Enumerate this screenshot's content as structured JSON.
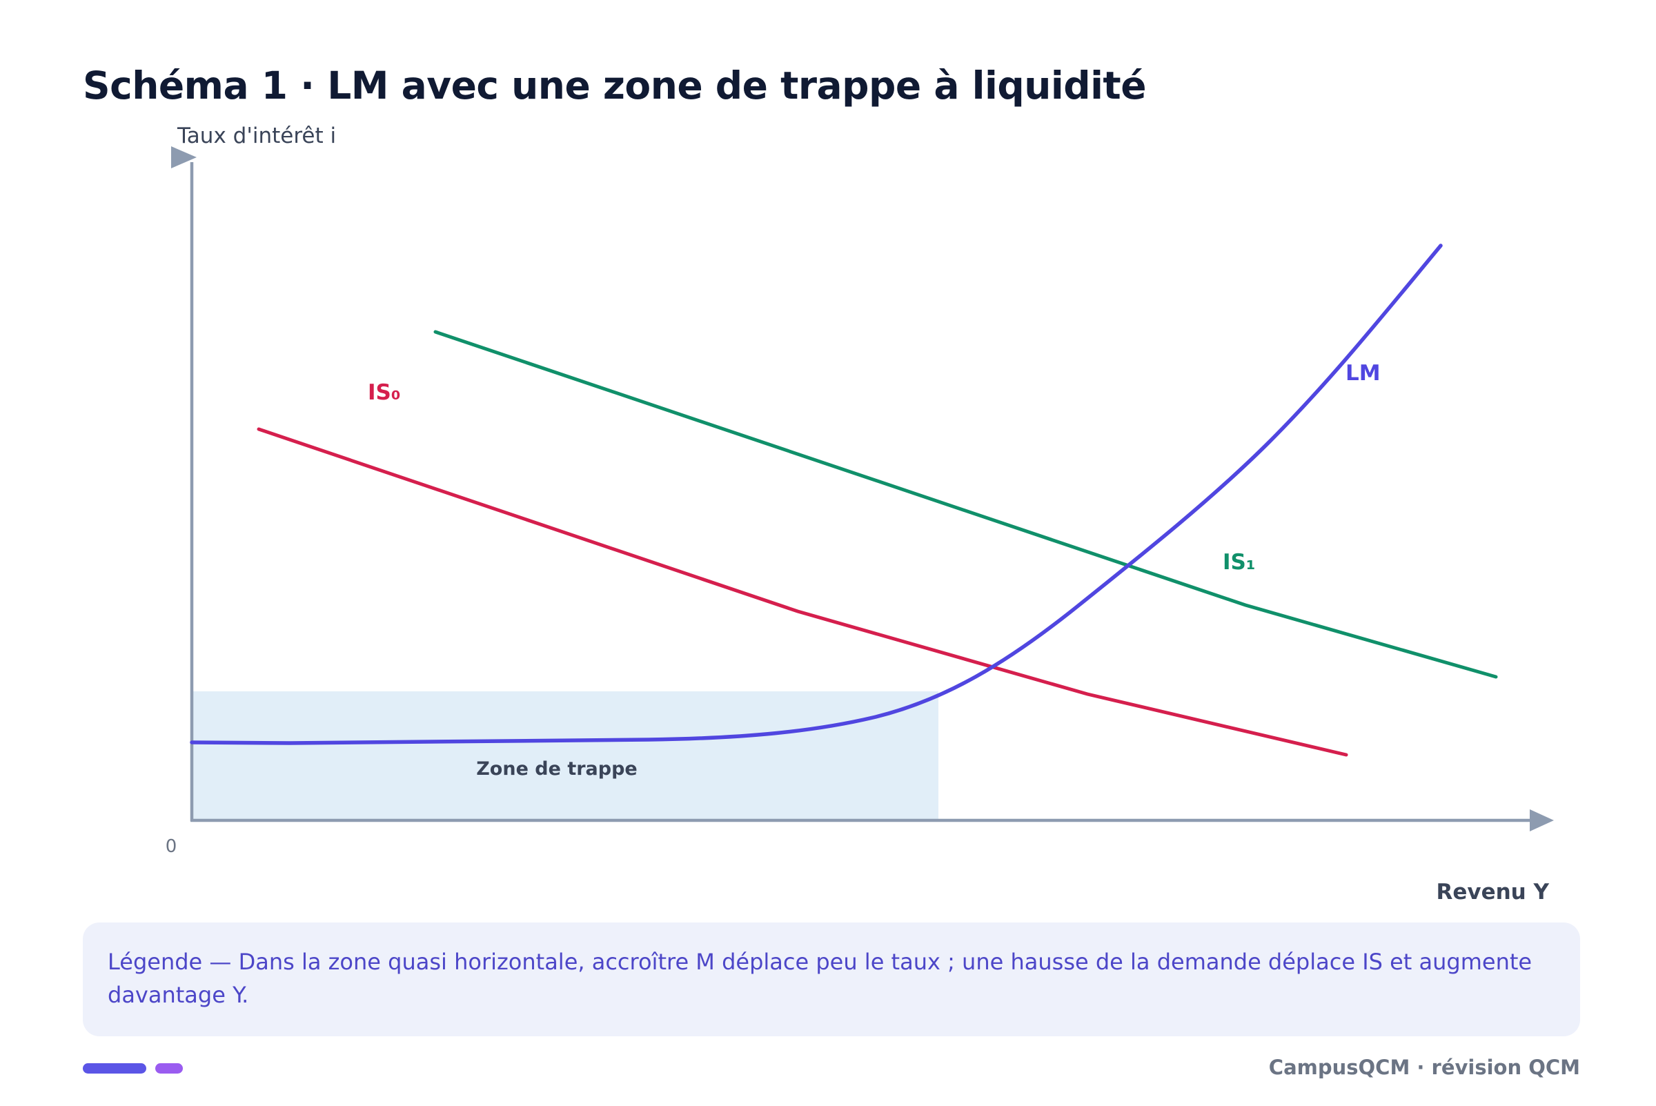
{
  "title": "Schéma 1 · LM avec une zone de trappe à liquidité",
  "axes": {
    "y_label": "Taux d'intérêt i",
    "x_label": "Revenu Y",
    "origin_label": "0"
  },
  "zone": {
    "label": "Zone de trappe"
  },
  "curves": {
    "lm": {
      "label": "LM",
      "color": "#5046e0"
    },
    "is0": {
      "label": "IS₀",
      "color": "#d51f4d"
    },
    "is1": {
      "label": "IS₁",
      "color": "#10906a"
    }
  },
  "colors": {
    "axis": "#8d9bb0",
    "zone_fill": "#e1eef8",
    "accent_1": "#5b55e6",
    "accent_2": "#9a5cf0"
  },
  "legend": {
    "text": "Légende — Dans la zone quasi horizontale, accroître M déplace peu le taux ; une hausse de la demande déplace IS et augmente davantage Y."
  },
  "footer": {
    "text": "CampusQCM · révision QCM"
  }
}
